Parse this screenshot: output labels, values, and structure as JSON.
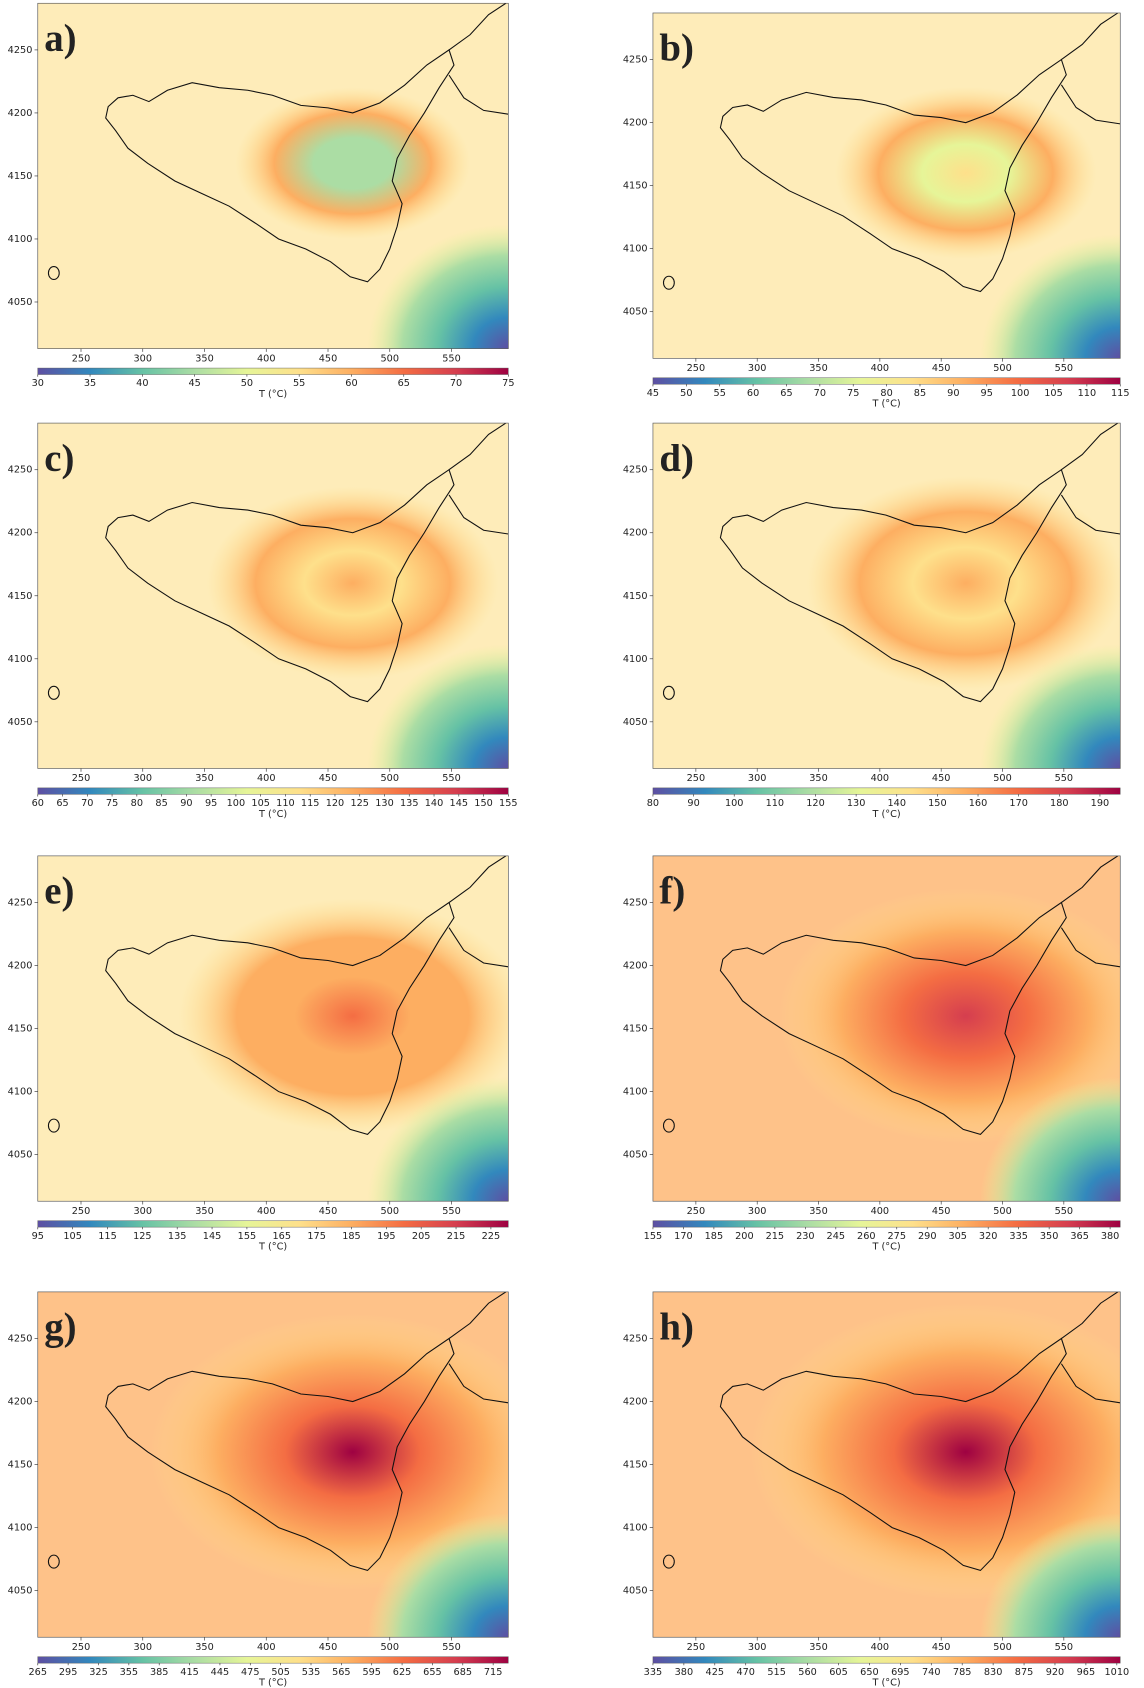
{
  "chart_data": [
    {
      "type": "contour",
      "label": "a)",
      "xlim": [
        215,
        596
      ],
      "ylim": [
        4013,
        4287
      ],
      "xticks": [
        250,
        300,
        350,
        400,
        450,
        500,
        550
      ],
      "yticks": [
        4050,
        4100,
        4150,
        4200,
        4250
      ],
      "colorbar": {
        "label": "T (°C)",
        "lim": [
          30,
          75
        ],
        "ticks": [
          30,
          35,
          40,
          45,
          50,
          55,
          60,
          65,
          70,
          75
        ]
      },
      "colormap": [
        "#5e4fa2",
        "#3288bd",
        "#66c2a5",
        "#abdda4",
        "#e6f598",
        "#fee08b",
        "#fdae61",
        "#f46d43",
        "#d53e4f",
        "#9e0142"
      ]
    },
    {
      "type": "contour",
      "label": "b)",
      "xlim": [
        215,
        596
      ],
      "ylim": [
        4013,
        4287
      ],
      "xticks": [
        250,
        300,
        350,
        400,
        450,
        500,
        550
      ],
      "yticks": [
        4050,
        4100,
        4150,
        4200,
        4250
      ],
      "colorbar": {
        "label": "T (°C)",
        "lim": [
          45,
          115
        ],
        "ticks": [
          45,
          50,
          55,
          60,
          65,
          70,
          75,
          80,
          85,
          90,
          95,
          100,
          105,
          110,
          115
        ]
      },
      "colormap": [
        "#5e4fa2",
        "#3288bd",
        "#66c2a5",
        "#abdda4",
        "#e6f598",
        "#fee08b",
        "#fdae61",
        "#f46d43",
        "#d53e4f",
        "#9e0142"
      ]
    },
    {
      "type": "contour",
      "label": "c)",
      "xlim": [
        215,
        596
      ],
      "ylim": [
        4013,
        4287
      ],
      "xticks": [
        250,
        300,
        350,
        400,
        450,
        500,
        550
      ],
      "yticks": [
        4050,
        4100,
        4150,
        4200,
        4250
      ],
      "colorbar": {
        "label": "T (°C)",
        "lim": [
          60,
          155
        ],
        "ticks": [
          60,
          65,
          70,
          75,
          80,
          85,
          90,
          95,
          100,
          105,
          110,
          115,
          120,
          125,
          130,
          135,
          140,
          145,
          150,
          155
        ]
      },
      "colormap": [
        "#5e4fa2",
        "#3288bd",
        "#66c2a5",
        "#abdda4",
        "#e6f598",
        "#fee08b",
        "#fdae61",
        "#f46d43",
        "#d53e4f",
        "#9e0142"
      ]
    },
    {
      "type": "contour",
      "label": "d)",
      "xlim": [
        215,
        596
      ],
      "ylim": [
        4013,
        4287
      ],
      "xticks": [
        250,
        300,
        350,
        400,
        450,
        500,
        550
      ],
      "yticks": [
        4050,
        4100,
        4150,
        4200,
        4250
      ],
      "colorbar": {
        "label": "T (°C)",
        "lim": [
          80,
          195
        ],
        "ticks": [
          80,
          90,
          100,
          110,
          120,
          130,
          140,
          150,
          160,
          170,
          180,
          190
        ]
      },
      "colormap": [
        "#5e4fa2",
        "#3288bd",
        "#66c2a5",
        "#abdda4",
        "#e6f598",
        "#fee08b",
        "#fdae61",
        "#f46d43",
        "#d53e4f",
        "#9e0142"
      ]
    },
    {
      "type": "contour",
      "label": "e)",
      "xlim": [
        215,
        596
      ],
      "ylim": [
        4013,
        4287
      ],
      "xticks": [
        250,
        300,
        350,
        400,
        450,
        500,
        550
      ],
      "yticks": [
        4050,
        4100,
        4150,
        4200,
        4250
      ],
      "colorbar": {
        "label": "T (°C)",
        "lim": [
          95,
          230
        ],
        "ticks": [
          95,
          105,
          115,
          125,
          135,
          145,
          155,
          165,
          175,
          185,
          195,
          205,
          215,
          225
        ]
      },
      "colormap": [
        "#5e4fa2",
        "#3288bd",
        "#66c2a5",
        "#abdda4",
        "#e6f598",
        "#fee08b",
        "#fdae61",
        "#f46d43",
        "#d53e4f",
        "#9e0142"
      ]
    },
    {
      "type": "contour",
      "label": "f)",
      "xlim": [
        215,
        596
      ],
      "ylim": [
        4013,
        4287
      ],
      "xticks": [
        250,
        300,
        350,
        400,
        450,
        500,
        550
      ],
      "yticks": [
        4050,
        4100,
        4150,
        4200,
        4250
      ],
      "colorbar": {
        "label": "T (°C)",
        "lim": [
          155,
          385
        ],
        "ticks": [
          155,
          170,
          185,
          200,
          215,
          230,
          245,
          260,
          275,
          290,
          305,
          320,
          335,
          350,
          365,
          380
        ]
      },
      "colormap": [
        "#5e4fa2",
        "#3288bd",
        "#66c2a5",
        "#abdda4",
        "#e6f598",
        "#fee08b",
        "#fdae61",
        "#f46d43",
        "#d53e4f",
        "#9e0142"
      ]
    },
    {
      "type": "contour",
      "label": "g)",
      "xlim": [
        215,
        596
      ],
      "ylim": [
        4013,
        4287
      ],
      "xticks": [
        250,
        300,
        350,
        400,
        450,
        500,
        550
      ],
      "yticks": [
        4050,
        4100,
        4150,
        4200,
        4250
      ],
      "colorbar": {
        "label": "T (°C)",
        "lim": [
          265,
          730
        ],
        "ticks": [
          265,
          295,
          325,
          355,
          385,
          415,
          445,
          475,
          505,
          535,
          565,
          595,
          625,
          655,
          685,
          715
        ]
      },
      "colormap": [
        "#5e4fa2",
        "#3288bd",
        "#66c2a5",
        "#abdda4",
        "#e6f598",
        "#fee08b",
        "#fdae61",
        "#f46d43",
        "#d53e4f",
        "#9e0142"
      ]
    },
    {
      "type": "contour",
      "label": "h)",
      "xlim": [
        215,
        596
      ],
      "ylim": [
        4013,
        4287
      ],
      "xticks": [
        250,
        300,
        350,
        400,
        450,
        500,
        550
      ],
      "yticks": [
        4050,
        4100,
        4150,
        4200,
        4250
      ],
      "colorbar": {
        "label": "T (°C)",
        "lim": [
          335,
          1015
        ],
        "ticks": [
          335,
          380,
          425,
          470,
          515,
          560,
          605,
          650,
          695,
          740,
          785,
          830,
          875,
          920,
          965,
          1010
        ]
      },
      "colormap": [
        "#5e4fa2",
        "#3288bd",
        "#66c2a5",
        "#abdda4",
        "#e6f598",
        "#fee08b",
        "#fdae61",
        "#f46d43",
        "#d53e4f",
        "#9e0142"
      ]
    }
  ]
}
